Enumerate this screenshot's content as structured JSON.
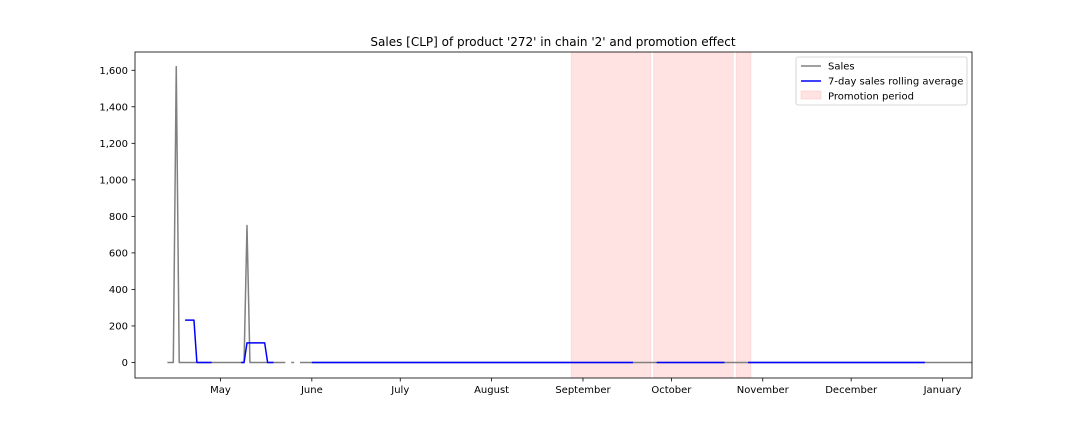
{
  "chart_data": {
    "type": "line",
    "title": "Sales [CLP] of product '272' in chain '2' and promotion effect",
    "xlabel": "",
    "ylabel": "",
    "x_range": [
      "2021-04-02",
      "2022-01-11"
    ],
    "ylim": [
      -85,
      1700
    ],
    "y_ticks": [
      0,
      200,
      400,
      600,
      800,
      1000,
      1200,
      1400,
      1600
    ],
    "y_tick_labels": [
      "0",
      "200",
      "400",
      "600",
      "800",
      "1,000",
      "1,200",
      "1,400",
      "1,600"
    ],
    "x_ticks": [
      "2021-05-01",
      "2021-06-01",
      "2021-07-01",
      "2021-08-01",
      "2021-09-01",
      "2021-10-01",
      "2021-11-01",
      "2021-12-01",
      "2022-01-01"
    ],
    "x_tick_labels": [
      "May",
      "June",
      "July",
      "August",
      "September",
      "October",
      "November",
      "December",
      "January"
    ],
    "legend": {
      "position": "upper-right",
      "entries": [
        "Sales",
        "7-day sales rolling average",
        "Promotion period"
      ]
    },
    "colors": {
      "sales": "#808080",
      "rolling": "#0000ff",
      "promotion": "#ffc0c0"
    },
    "grid": false,
    "series": [
      {
        "name": "Sales",
        "segments": [
          {
            "x": [
              "2021-04-13",
              "2021-04-15",
              "2021-04-16",
              "2021-04-17",
              "2021-04-18",
              "2021-05-01"
            ],
            "y": [
              0,
              0,
              1620,
              0,
              0,
              0
            ]
          },
          {
            "x": [
              "2021-05-01",
              "2021-05-09",
              "2021-05-10",
              "2021-05-11",
              "2021-05-12",
              "2021-05-23"
            ],
            "y": [
              0,
              0,
              750,
              0,
              0,
              0
            ]
          },
          {
            "x": [
              "2021-05-25",
              "2021-05-26"
            ],
            "y": [
              0,
              0
            ]
          },
          {
            "x": [
              "2021-05-28",
              "2022-01-11"
            ],
            "y": [
              0,
              0
            ]
          }
        ]
      },
      {
        "name": "7-day sales rolling average",
        "segments": [
          {
            "x": [
              "2021-04-19",
              "2021-04-22",
              "2021-04-23",
              "2021-04-28"
            ],
            "y": [
              232,
              232,
              0,
              0
            ]
          },
          {
            "x": [
              "2021-05-08",
              "2021-05-09",
              "2021-05-10",
              "2021-05-16",
              "2021-05-17",
              "2021-05-19"
            ],
            "y": [
              0,
              0,
              107,
              107,
              0,
              0
            ]
          },
          {
            "x": [
              "2021-06-01",
              "2021-09-18"
            ],
            "y": [
              0,
              0
            ]
          },
          {
            "x": [
              "2021-09-26",
              "2021-10-19"
            ],
            "y": [
              0,
              0
            ]
          },
          {
            "x": [
              "2021-10-27",
              "2021-12-26"
            ],
            "y": [
              0,
              0
            ]
          }
        ]
      }
    ],
    "promotion_periods": [
      [
        "2021-08-28",
        "2021-09-24"
      ],
      [
        "2021-09-25",
        "2021-10-22"
      ],
      [
        "2021-10-23",
        "2021-10-28"
      ]
    ]
  }
}
